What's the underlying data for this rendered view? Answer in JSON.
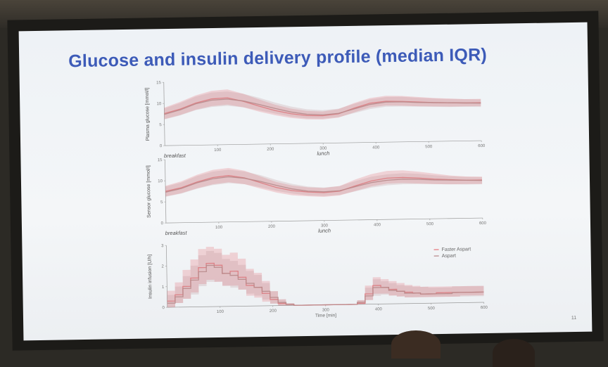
{
  "slide": {
    "title": "Glucose and insulin delivery profile (median IQR)",
    "page_number": "11"
  },
  "chart_data": [
    {
      "type": "line",
      "ylabel": "Plasma glucose [mmol/l]",
      "xlim": [
        0,
        600
      ],
      "ylim": [
        0,
        15
      ],
      "yticks": [
        "0",
        "5",
        "10",
        "15"
      ],
      "xticks": [
        "100",
        "200",
        "300",
        "400",
        "500",
        "600"
      ],
      "event_labels": [
        {
          "x": 0,
          "text": "breakfast"
        },
        {
          "x": 300,
          "text": "lunch"
        }
      ],
      "x": [
        0,
        30,
        60,
        90,
        120,
        150,
        180,
        210,
        240,
        270,
        300,
        330,
        360,
        390,
        420,
        450,
        480,
        510,
        540,
        570,
        600
      ],
      "series": [
        {
          "name": "Faster Aspart",
          "color": "#e6787d",
          "values": [
            7.6,
            8.6,
            10.0,
            10.9,
            11.1,
            10.2,
            9.0,
            7.9,
            7.1,
            6.6,
            6.5,
            6.9,
            8.2,
            9.3,
            9.7,
            9.6,
            9.4,
            9.2,
            9.1,
            9.0,
            9.0
          ],
          "q1": [
            6.3,
            7.2,
            8.4,
            9.2,
            9.5,
            8.8,
            7.7,
            6.8,
            6.1,
            5.7,
            5.6,
            6.0,
            7.2,
            8.3,
            8.7,
            8.6,
            8.4,
            8.3,
            8.2,
            8.2,
            8.2
          ],
          "q3": [
            9.0,
            10.3,
            11.8,
            12.8,
            13.1,
            12.0,
            10.6,
            9.3,
            8.3,
            7.7,
            7.5,
            8.0,
            9.4,
            10.5,
            11.0,
            10.9,
            10.6,
            10.3,
            10.1,
            9.9,
            9.9
          ]
        },
        {
          "name": "Aspart",
          "color": "#b8898b",
          "values": [
            7.4,
            8.4,
            9.8,
            10.6,
            10.8,
            10.3,
            9.4,
            8.4,
            7.5,
            6.9,
            6.7,
            7.0,
            8.0,
            9.0,
            9.5,
            9.5,
            9.3,
            9.2,
            9.1,
            9.0,
            8.9
          ],
          "q1": [
            6.2,
            7.1,
            8.3,
            9.0,
            9.2,
            8.8,
            8.0,
            7.2,
            6.4,
            5.9,
            5.8,
            6.1,
            7.0,
            7.9,
            8.4,
            8.4,
            8.3,
            8.2,
            8.1,
            8.1,
            8.0
          ],
          "q3": [
            8.8,
            10.0,
            11.5,
            12.4,
            12.6,
            12.0,
            11.0,
            9.8,
            8.8,
            8.1,
            7.8,
            8.1,
            9.2,
            10.2,
            10.7,
            10.7,
            10.4,
            10.2,
            10.0,
            9.9,
            9.8
          ]
        }
      ]
    },
    {
      "type": "line",
      "ylabel": "Sensor glucose [mmol/l]",
      "xlim": [
        0,
        600
      ],
      "ylim": [
        0,
        15
      ],
      "yticks": [
        "0",
        "5",
        "10",
        "15"
      ],
      "xticks": [
        "100",
        "200",
        "300",
        "400",
        "500",
        "600"
      ],
      "event_labels": [
        {
          "x": 0,
          "text": "breakfast"
        },
        {
          "x": 300,
          "text": "lunch"
        }
      ],
      "x": [
        0,
        30,
        60,
        90,
        120,
        150,
        180,
        210,
        240,
        270,
        300,
        330,
        360,
        390,
        420,
        450,
        480,
        510,
        540,
        570,
        600
      ],
      "series": [
        {
          "name": "Faster Aspart",
          "color": "#e6787d",
          "values": [
            7.5,
            8.3,
            9.6,
            10.6,
            11.0,
            10.4,
            9.2,
            8.0,
            7.2,
            6.8,
            6.6,
            6.9,
            8.1,
            9.2,
            9.8,
            9.9,
            9.7,
            9.4,
            9.2,
            9.0,
            9.0
          ],
          "q1": [
            6.3,
            7.0,
            8.1,
            9.0,
            9.4,
            8.9,
            7.8,
            6.8,
            6.1,
            5.8,
            5.6,
            5.9,
            6.9,
            7.9,
            8.5,
            8.6,
            8.4,
            8.2,
            8.1,
            8.1,
            8.1
          ],
          "q3": [
            8.8,
            9.8,
            11.3,
            12.4,
            12.8,
            12.1,
            10.7,
            9.3,
            8.4,
            7.9,
            7.7,
            8.1,
            9.6,
            10.8,
            11.5,
            11.6,
            11.2,
            10.7,
            10.2,
            9.9,
            9.8
          ]
        },
        {
          "name": "Aspart",
          "color": "#b8898b",
          "values": [
            7.3,
            8.1,
            9.4,
            10.3,
            10.7,
            10.3,
            9.5,
            8.5,
            7.6,
            7.0,
            6.8,
            7.0,
            7.9,
            8.8,
            9.3,
            9.5,
            9.4,
            9.2,
            9.1,
            9.0,
            8.9
          ],
          "q1": [
            6.2,
            6.9,
            8.0,
            8.8,
            9.2,
            8.9,
            8.1,
            7.2,
            6.5,
            6.0,
            5.8,
            6.0,
            6.8,
            7.6,
            8.1,
            8.3,
            8.3,
            8.2,
            8.1,
            8.0,
            8.0
          ],
          "q3": [
            8.6,
            9.5,
            11.0,
            12.0,
            12.4,
            11.9,
            11.0,
            9.8,
            8.8,
            8.1,
            7.8,
            8.1,
            9.2,
            10.2,
            10.7,
            10.9,
            10.7,
            10.3,
            10.0,
            9.8,
            9.7
          ]
        }
      ]
    },
    {
      "type": "line",
      "ylabel": "Insulin infusion [U/h]",
      "xlabel": "Time [min]",
      "xlim": [
        0,
        600
      ],
      "ylim": [
        0,
        3
      ],
      "yticks": [
        "0",
        "1",
        "2",
        "3"
      ],
      "xticks": [
        "100",
        "200",
        "300",
        "400",
        "500",
        "600"
      ],
      "legend": {
        "position": "right",
        "entries": [
          "Faster Aspart",
          "Aspart"
        ]
      },
      "x": [
        0,
        15,
        30,
        45,
        60,
        75,
        90,
        105,
        120,
        135,
        150,
        165,
        180,
        195,
        210,
        225,
        240,
        255,
        270,
        285,
        300,
        315,
        330,
        345,
        360,
        375,
        390,
        405,
        420,
        435,
        450,
        465,
        480,
        495,
        510,
        525,
        540,
        555,
        570,
        585,
        600
      ],
      "series": [
        {
          "name": "Faster Aspart",
          "color": "#e6787d",
          "values": [
            0.3,
            0.6,
            1.0,
            1.4,
            1.9,
            2.1,
            2.0,
            1.6,
            1.7,
            1.4,
            1.0,
            0.9,
            0.6,
            0.3,
            0.1,
            0.05,
            0.0,
            0.0,
            0.0,
            0.0,
            0.0,
            0.0,
            0.0,
            0.0,
            0.05,
            0.5,
            0.9,
            0.8,
            0.7,
            0.6,
            0.55,
            0.5,
            0.45,
            0.45,
            0.5,
            0.5,
            0.5,
            0.5,
            0.5,
            0.5,
            0.5
          ],
          "q1": [
            0.0,
            0.2,
            0.4,
            0.7,
            1.1,
            1.3,
            1.2,
            1.0,
            1.0,
            0.8,
            0.5,
            0.4,
            0.2,
            0.1,
            0.0,
            0.0,
            0.0,
            0.0,
            0.0,
            0.0,
            0.0,
            0.0,
            0.0,
            0.0,
            0.0,
            0.2,
            0.5,
            0.5,
            0.4,
            0.35,
            0.3,
            0.3,
            0.3,
            0.3,
            0.3,
            0.3,
            0.3,
            0.35,
            0.35,
            0.35,
            0.35
          ],
          "q3": [
            0.8,
            1.2,
            1.8,
            2.3,
            2.8,
            2.9,
            2.8,
            2.5,
            2.6,
            2.3,
            1.8,
            1.6,
            1.2,
            0.7,
            0.3,
            0.1,
            0.0,
            0.0,
            0.0,
            0.0,
            0.0,
            0.0,
            0.0,
            0.0,
            0.2,
            0.9,
            1.3,
            1.2,
            1.1,
            1.0,
            0.9,
            0.85,
            0.8,
            0.8,
            0.8,
            0.8,
            0.8,
            0.8,
            0.8,
            0.8,
            0.8
          ]
        },
        {
          "name": "Aspart",
          "color": "#b8898b",
          "values": [
            0.2,
            0.5,
            0.9,
            1.3,
            1.7,
            2.0,
            1.9,
            1.6,
            1.5,
            1.3,
            1.1,
            0.9,
            0.7,
            0.4,
            0.15,
            0.05,
            0.0,
            0.0,
            0.0,
            0.0,
            0.0,
            0.0,
            0.0,
            0.0,
            0.1,
            0.4,
            0.8,
            0.8,
            0.65,
            0.6,
            0.5,
            0.5,
            0.45,
            0.45,
            0.45,
            0.45,
            0.5,
            0.5,
            0.5,
            0.5,
            0.5
          ],
          "q1": [
            0.0,
            0.2,
            0.4,
            0.6,
            1.0,
            1.2,
            1.2,
            1.0,
            0.9,
            0.8,
            0.6,
            0.5,
            0.3,
            0.1,
            0.0,
            0.0,
            0.0,
            0.0,
            0.0,
            0.0,
            0.0,
            0.0,
            0.0,
            0.0,
            0.0,
            0.2,
            0.4,
            0.45,
            0.4,
            0.35,
            0.3,
            0.3,
            0.3,
            0.3,
            0.3,
            0.3,
            0.3,
            0.3,
            0.3,
            0.3,
            0.3
          ],
          "q3": [
            0.6,
            1.0,
            1.5,
            2.0,
            2.5,
            2.7,
            2.6,
            2.3,
            2.2,
            2.0,
            1.7,
            1.5,
            1.1,
            0.7,
            0.3,
            0.1,
            0.0,
            0.0,
            0.0,
            0.0,
            0.0,
            0.0,
            0.0,
            0.0,
            0.2,
            0.8,
            1.2,
            1.1,
            1.0,
            0.9,
            0.85,
            0.8,
            0.8,
            0.75,
            0.75,
            0.75,
            0.8,
            0.8,
            0.8,
            0.8,
            0.8
          ]
        }
      ]
    }
  ]
}
